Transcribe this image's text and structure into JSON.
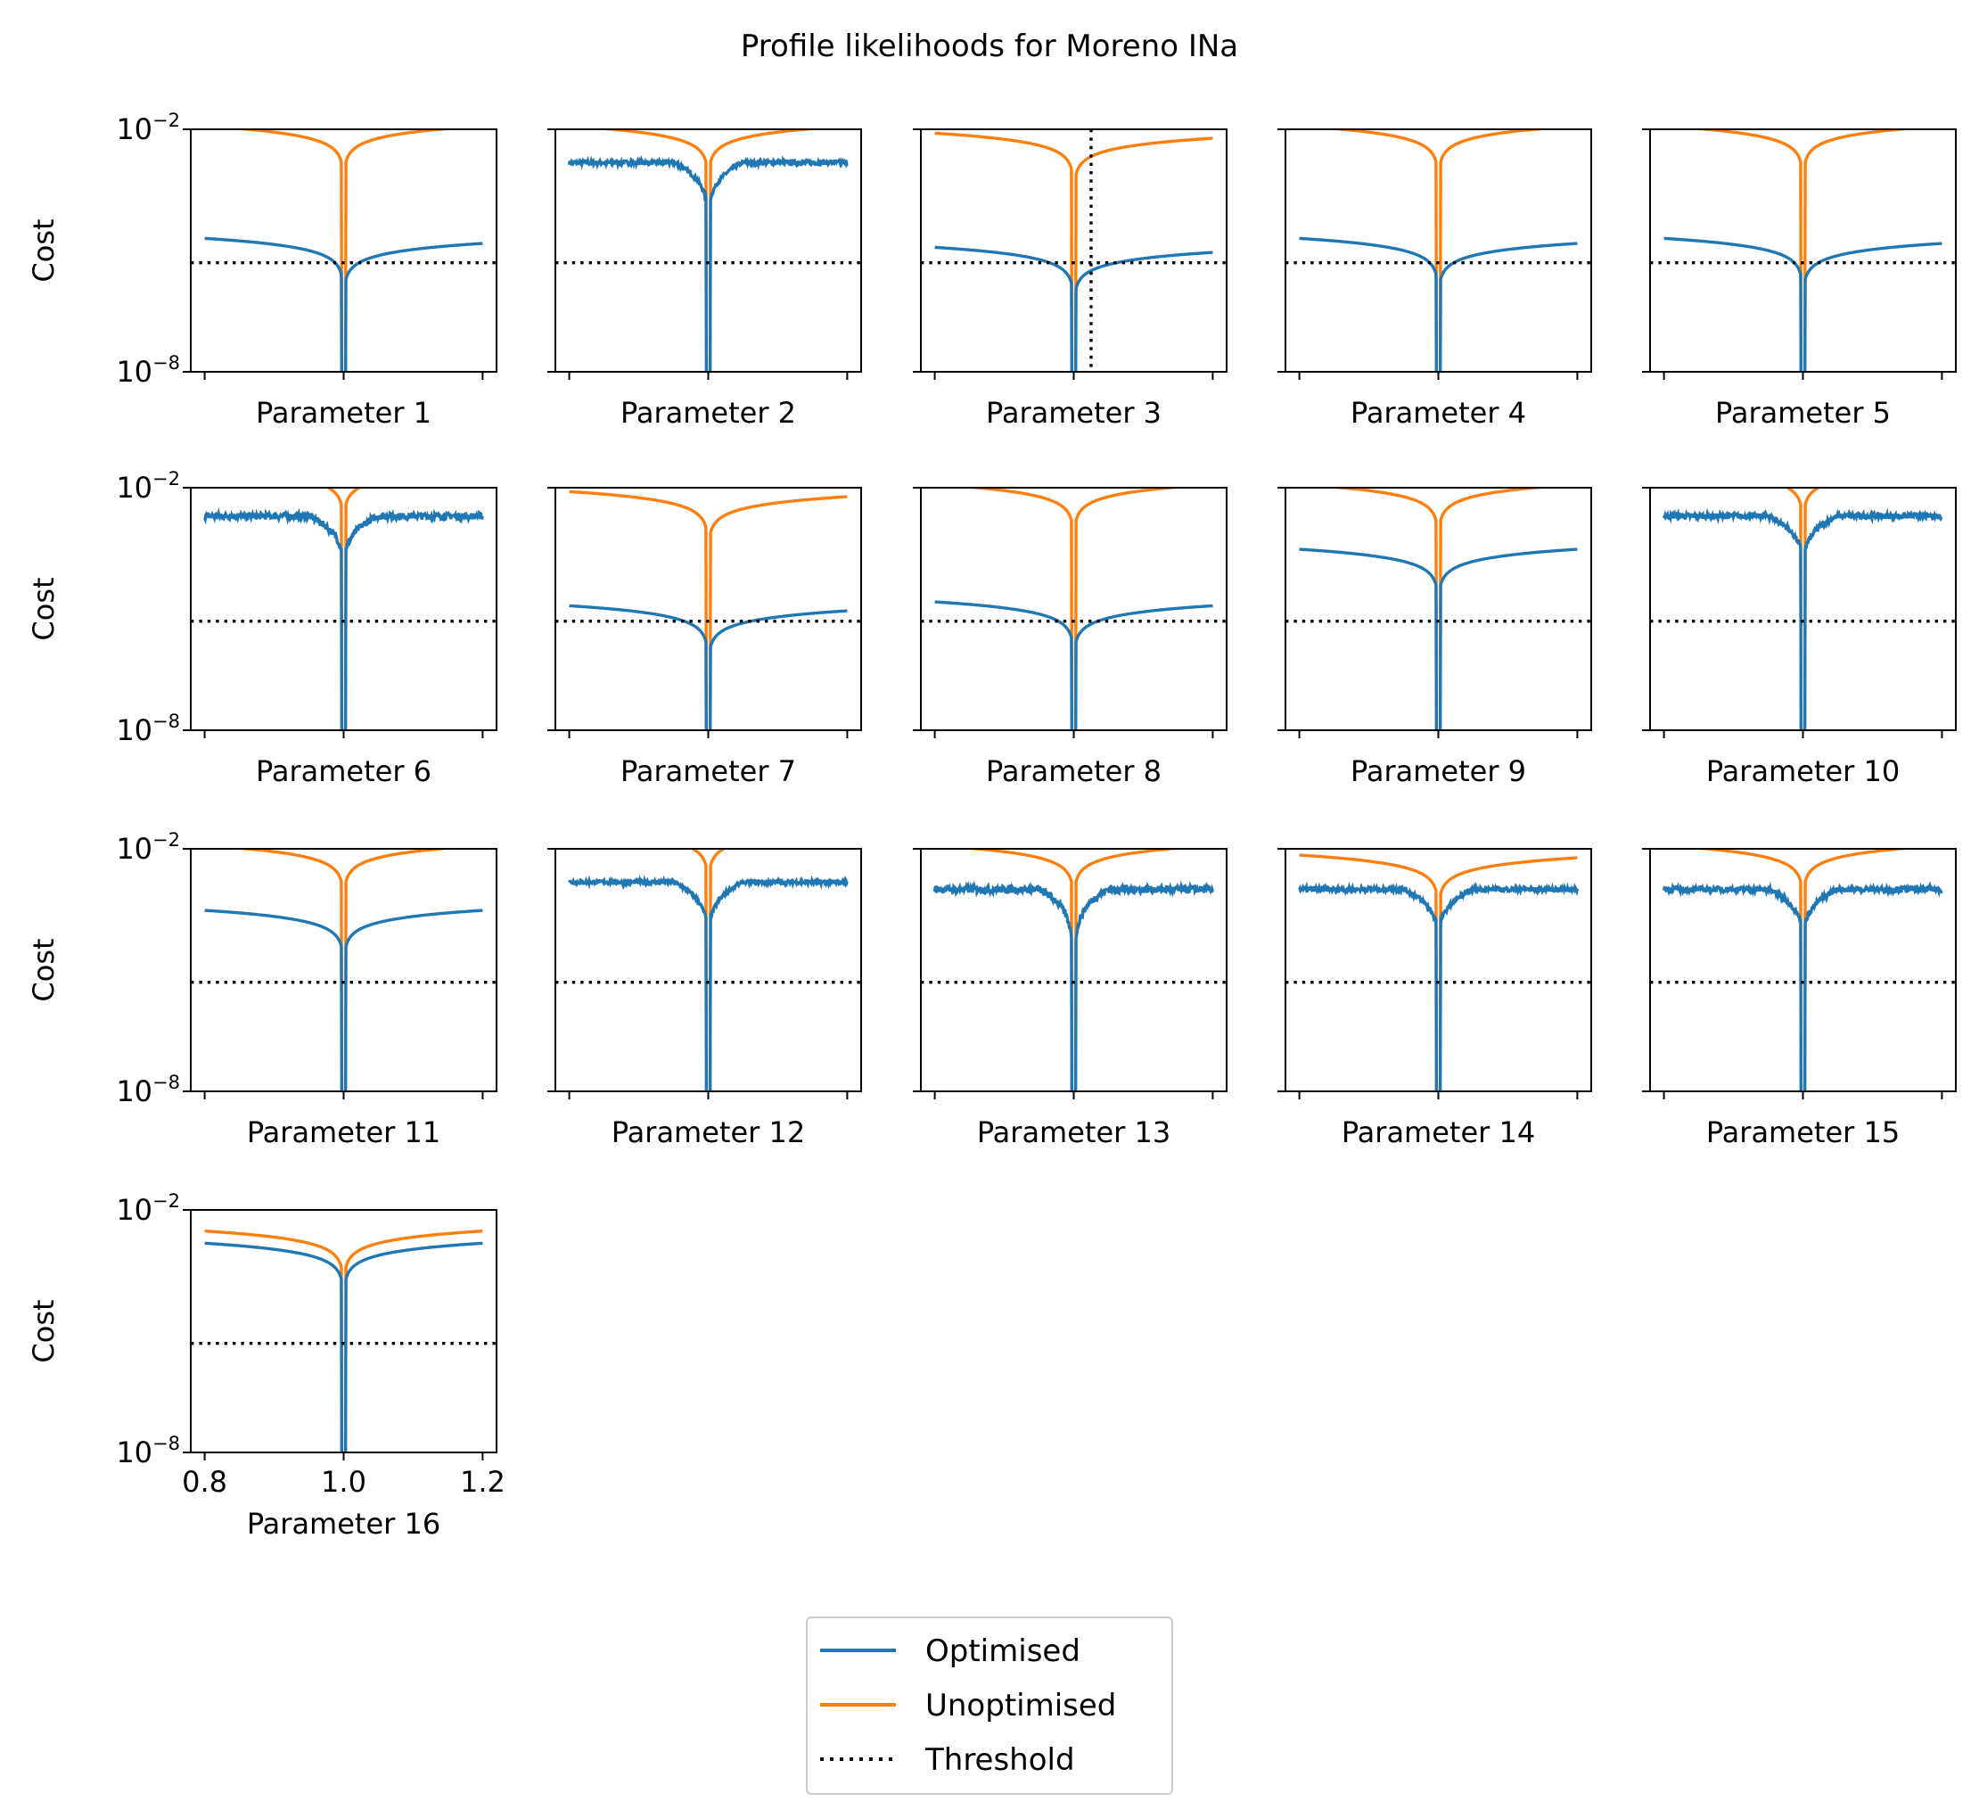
{
  "chart_data": {
    "type": "line",
    "title": "Profile likelihoods for Moreno INa",
    "yscale": "log",
    "ylim": [
      1e-08,
      0.01
    ],
    "yticks": [
      {
        "base": "10",
        "exp": "−8",
        "value": 1e-08
      },
      {
        "base": "10",
        "exp": "−2",
        "value": 0.01
      }
    ],
    "ylabel": "Cost",
    "xlim": [
      0.78,
      1.22
    ],
    "xticks": [
      0.8,
      1.0,
      1.2
    ],
    "xtick_labels": [
      "0.8",
      "1.0",
      "1.2"
    ],
    "threshold": 5e-06,
    "legend_position": "bottom-center",
    "legend": [
      {
        "label": "Optimised",
        "color": "#1f77b4",
        "style": "solid"
      },
      {
        "label": "Unoptimised",
        "color": "#ff7f0e",
        "style": "solid"
      },
      {
        "label": "Threshold",
        "color": "#000000",
        "style": "dotted"
      }
    ],
    "colors": {
      "optimised": "#1f77b4",
      "unoptimised": "#ff7f0e",
      "threshold": "#000000"
    },
    "subplots": [
      {
        "xlabel": "Parameter 1",
        "unopt": {
          "at08": 0.012,
          "at12": 0.012,
          "width": 0.007
        },
        "opt": {
          "kind": "smooth",
          "at08": 2e-05,
          "at12": 1.5e-05
        }
      },
      {
        "xlabel": "Parameter 2",
        "unopt": {
          "at08": 0.012,
          "at12": 0.012,
          "width": 0.009
        },
        "opt": {
          "kind": "rough_flat",
          "level": 0.0015,
          "noise": 0.12,
          "center": 0.0001
        }
      },
      {
        "xlabel": "Parameter 3",
        "unopt": {
          "at08": 0.008,
          "at12": 0.006,
          "width": 0.007
        },
        "opt": {
          "kind": "smooth",
          "at08": 1.2e-05,
          "at12": 9e-06
        },
        "vline": 1.025
      },
      {
        "xlabel": "Parameter 4",
        "unopt": {
          "at08": 0.012,
          "at12": 0.012,
          "width": 0.007
        },
        "opt": {
          "kind": "smooth",
          "at08": 2e-05,
          "at12": 1.5e-05
        }
      },
      {
        "xlabel": "Parameter 5",
        "unopt": {
          "at08": 0.012,
          "at12": 0.012,
          "width": 0.007
        },
        "opt": {
          "kind": "smooth",
          "at08": 2e-05,
          "at12": 1.5e-05
        }
      },
      {
        "xlabel": "Parameter 6",
        "unopt": {
          "at08": 0.03,
          "at12": 0.03,
          "width": 0.003
        },
        "opt": {
          "kind": "rough_flat",
          "level": 0.002,
          "noise": 0.18,
          "center": 0.0002
        }
      },
      {
        "xlabel": "Parameter 7",
        "unopt": {
          "at08": 0.008,
          "at12": 0.006,
          "width": 0.007
        },
        "opt": {
          "kind": "smooth",
          "at08": 1.2e-05,
          "at12": 9e-06
        }
      },
      {
        "xlabel": "Parameter 8",
        "unopt": {
          "at08": 0.012,
          "at12": 0.012,
          "width": 0.007
        },
        "opt": {
          "kind": "smooth",
          "at08": 1.5e-05,
          "at12": 1.2e-05
        }
      },
      {
        "xlabel": "Parameter 9",
        "unopt": {
          "at08": 0.012,
          "at12": 0.012,
          "width": 0.007
        },
        "opt": {
          "kind": "smooth",
          "at08": 0.0003,
          "at12": 0.0003
        }
      },
      {
        "xlabel": "Parameter 10",
        "unopt": {
          "at08": 0.03,
          "at12": 0.03,
          "width": 0.003
        },
        "opt": {
          "kind": "rough_flat",
          "level": 0.002,
          "noise": 0.15,
          "center": 0.0002
        }
      },
      {
        "xlabel": "Parameter 11",
        "unopt": {
          "at08": 0.012,
          "at12": 0.012,
          "width": 0.007
        },
        "opt": {
          "kind": "smooth",
          "at08": 0.0003,
          "at12": 0.0003
        }
      },
      {
        "xlabel": "Parameter 12",
        "unopt": {
          "at08": 0.03,
          "at12": 0.03,
          "width": 0.003
        },
        "opt": {
          "kind": "rough_flat",
          "level": 0.0015,
          "noise": 0.1,
          "center": 0.0001
        }
      },
      {
        "xlabel": "Parameter 13",
        "unopt": {
          "at08": 0.012,
          "at12": 0.012,
          "width": 0.007
        },
        "opt": {
          "kind": "rough_flat",
          "level": 0.001,
          "noise": 0.2,
          "center": 5e-06
        }
      },
      {
        "xlabel": "Parameter 14",
        "unopt": {
          "at08": 0.007,
          "at12": 0.006,
          "width": 0.012
        },
        "opt": {
          "kind": "rough_flat",
          "level": 0.001,
          "noise": 0.12,
          "center": 0.0001
        }
      },
      {
        "xlabel": "Parameter 15",
        "unopt": {
          "at08": 0.012,
          "at12": 0.012,
          "width": 0.007
        },
        "opt": {
          "kind": "rough_flat",
          "level": 0.001,
          "noise": 0.15,
          "center": 0.0001
        }
      },
      {
        "xlabel": "Parameter 16",
        "unopt": {
          "at08": 0.003,
          "at12": 0.003,
          "width": 0.0135
        },
        "opt": {
          "kind": "smooth",
          "at08": 0.0015,
          "at12": 0.0015
        }
      }
    ]
  }
}
